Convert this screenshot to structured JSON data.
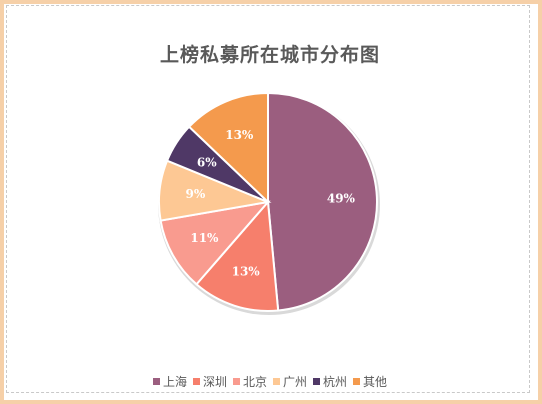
{
  "chart_data": {
    "type": "pie",
    "title": "上榜私募所在城市分布图",
    "categories": [
      "上海",
      "深圳",
      "北京",
      "广州",
      "杭州",
      "其他"
    ],
    "values": [
      49,
      13,
      11,
      9,
      6,
      13
    ],
    "labels": [
      "49%",
      "13%",
      "11%",
      "9%",
      "6%",
      "13%"
    ],
    "colors": [
      "#9b5e7f",
      "#f67f6c",
      "#f99b8f",
      "#fdc894",
      "#4f3866",
      "#f49a4d"
    ],
    "legend_position": "bottom",
    "start_angle": "12 o'clock",
    "direction": "clockwise"
  }
}
